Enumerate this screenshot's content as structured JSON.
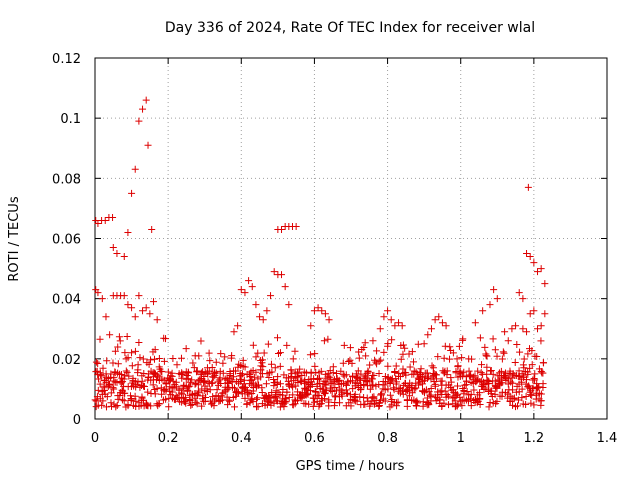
{
  "chart_data": {
    "type": "scatter",
    "title": "Day 336 of 2024, Rate Of TEC Index for receiver wlal",
    "xlabel": "GPS time / hours",
    "ylabel": "ROTI / TECUs",
    "xlim": [
      0,
      1.4
    ],
    "ylim": [
      0,
      0.12
    ],
    "xticks": [
      0,
      0.2,
      0.4,
      0.6,
      0.8,
      1,
      1.2,
      1.4
    ],
    "xtick_labels": [
      "0",
      "0.2",
      "0.4",
      "0.6",
      "0.8",
      "1",
      "1.2",
      "1.4"
    ],
    "yticks": [
      0,
      0.02,
      0.04,
      0.06,
      0.08,
      0.1,
      0.12
    ],
    "ytick_labels": [
      "0",
      "0.02",
      "0.04",
      "0.06",
      "0.08",
      "0.1",
      "0.12"
    ],
    "grid": true,
    "marker": "plus",
    "color": "#dd0000",
    "series": [
      {
        "name": "roti",
        "points": [
          [
            0.002,
            0.066
          ],
          [
            0.008,
            0.065
          ],
          [
            0.018,
            0.066
          ],
          [
            0.028,
            0.066
          ],
          [
            0.038,
            0.067
          ],
          [
            0.048,
            0.067
          ],
          [
            0.002,
            0.043
          ],
          [
            0.008,
            0.042
          ],
          [
            0.02,
            0.04
          ],
          [
            0.03,
            0.034
          ],
          [
            0.04,
            0.028
          ],
          [
            0.05,
            0.057
          ],
          [
            0.06,
            0.055
          ],
          [
            0.08,
            0.054
          ],
          [
            0.09,
            0.062
          ],
          [
            0.05,
            0.041
          ],
          [
            0.06,
            0.041
          ],
          [
            0.07,
            0.041
          ],
          [
            0.08,
            0.041
          ],
          [
            0.09,
            0.038
          ],
          [
            0.1,
            0.037
          ],
          [
            0.11,
            0.034
          ],
          [
            0.12,
            0.041
          ],
          [
            0.13,
            0.036
          ],
          [
            0.14,
            0.037
          ],
          [
            0.15,
            0.035
          ],
          [
            0.16,
            0.039
          ],
          [
            0.17,
            0.033
          ],
          [
            0.1,
            0.075
          ],
          [
            0.11,
            0.083
          ],
          [
            0.12,
            0.099
          ],
          [
            0.13,
            0.103
          ],
          [
            0.14,
            0.106
          ],
          [
            0.145,
            0.091
          ],
          [
            0.155,
            0.063
          ],
          [
            0.38,
            0.029
          ],
          [
            0.39,
            0.031
          ],
          [
            0.4,
            0.043
          ],
          [
            0.41,
            0.042
          ],
          [
            0.42,
            0.046
          ],
          [
            0.43,
            0.044
          ],
          [
            0.44,
            0.038
          ],
          [
            0.45,
            0.034
          ],
          [
            0.46,
            0.033
          ],
          [
            0.47,
            0.036
          ],
          [
            0.48,
            0.041
          ],
          [
            0.49,
            0.049
          ],
          [
            0.5,
            0.048
          ],
          [
            0.51,
            0.048
          ],
          [
            0.52,
            0.044
          ],
          [
            0.53,
            0.038
          ],
          [
            0.5,
            0.063
          ],
          [
            0.51,
            0.063
          ],
          [
            0.52,
            0.064
          ],
          [
            0.53,
            0.064
          ],
          [
            0.54,
            0.064
          ],
          [
            0.55,
            0.064
          ],
          [
            0.59,
            0.031
          ],
          [
            0.6,
            0.036
          ],
          [
            0.61,
            0.037
          ],
          [
            0.62,
            0.036
          ],
          [
            0.63,
            0.035
          ],
          [
            0.64,
            0.033
          ],
          [
            0.72,
            0.016
          ],
          [
            0.74,
            0.021
          ],
          [
            0.76,
            0.026
          ],
          [
            0.78,
            0.03
          ],
          [
            0.79,
            0.034
          ],
          [
            0.8,
            0.036
          ],
          [
            0.81,
            0.033
          ],
          [
            0.82,
            0.031
          ],
          [
            0.83,
            0.032
          ],
          [
            0.84,
            0.031
          ],
          [
            0.9,
            0.025
          ],
          [
            0.91,
            0.028
          ],
          [
            0.92,
            0.03
          ],
          [
            0.93,
            0.033
          ],
          [
            0.94,
            0.034
          ],
          [
            0.95,
            0.032
          ],
          [
            0.96,
            0.031
          ],
          [
            0.97,
            0.024
          ],
          [
            0.98,
            0.022
          ],
          [
            0.99,
            0.02
          ],
          [
            1.04,
            0.032
          ],
          [
            1.06,
            0.036
          ],
          [
            1.08,
            0.038
          ],
          [
            1.09,
            0.043
          ],
          [
            1.1,
            0.04
          ],
          [
            1.12,
            0.029
          ],
          [
            1.13,
            0.026
          ],
          [
            1.14,
            0.03
          ],
          [
            1.15,
            0.031
          ],
          [
            1.16,
            0.042
          ],
          [
            1.17,
            0.04
          ],
          [
            1.18,
            0.055
          ],
          [
            1.19,
            0.054
          ],
          [
            1.2,
            0.052
          ],
          [
            1.21,
            0.049
          ],
          [
            1.22,
            0.05
          ],
          [
            1.23,
            0.045
          ],
          [
            1.23,
            0.035
          ],
          [
            1.22,
            0.031
          ],
          [
            1.185,
            0.077
          ],
          [
            1.19,
            0.035
          ],
          [
            1.2,
            0.036
          ],
          [
            1.21,
            0.03
          ],
          [
            1.17,
            0.03
          ],
          [
            1.18,
            0.029
          ]
        ]
      }
    ]
  }
}
